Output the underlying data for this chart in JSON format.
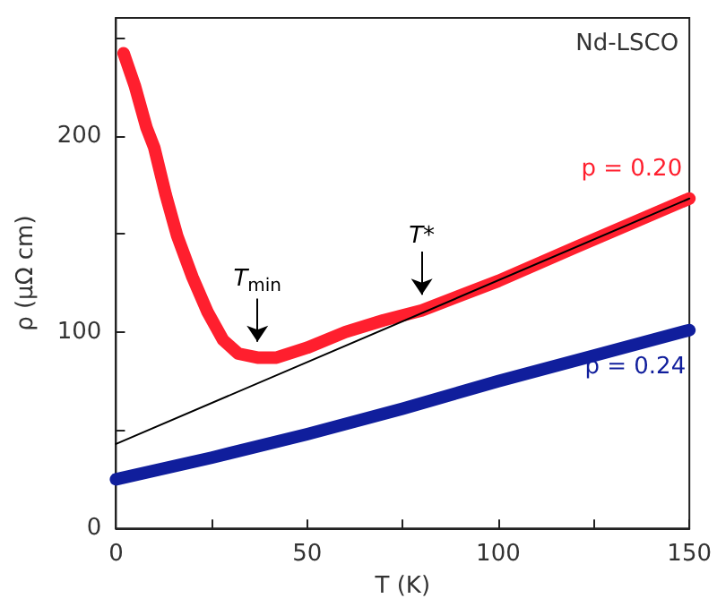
{
  "chart_data": {
    "type": "line",
    "xlabel": "T (K)",
    "ylabel": "ρ (μΩ cm)",
    "xlim": [
      0,
      150
    ],
    "xticks": [
      0,
      {
        "value": 25,
        "label": null
      },
      50,
      {
        "value": 75,
        "label": null
      },
      100,
      {
        "value": 125,
        "label": null
      },
      150
    ],
    "ylim": [
      0,
      260
    ],
    "yticks": [
      0,
      {
        "value": 50,
        "label": null
      },
      100,
      {
        "value": 150,
        "label": null
      },
      200,
      {
        "value": 250,
        "label": null
      }
    ],
    "grid": false,
    "legend": false,
    "marker": "none",
    "series": [
      {
        "name": "p = 0.20",
        "color": "#ff1f2e",
        "x": [
          2,
          5,
          8,
          10,
          13,
          16,
          20,
          24,
          28,
          32,
          37,
          42,
          50,
          60,
          70,
          80,
          100,
          120,
          150
        ],
        "values": [
          242,
          225,
          204,
          194,
          170,
          149,
          128,
          110,
          96,
          89,
          87,
          87,
          92,
          100,
          106,
          111,
          126,
          143,
          168
        ]
      },
      {
        "name": "p = 0.24",
        "color": "#101e9c",
        "x": [
          0,
          25,
          50,
          75,
          100,
          125,
          150
        ],
        "values": [
          25,
          36,
          48,
          61,
          75,
          88,
          101
        ]
      },
      {
        "color": "#000000",
        "x": [
          0,
          150
        ],
        "values": [
          43,
          168
        ]
      }
    ],
    "annotations": [
      {
        "text": "T$_{min}$",
        "x": 37,
        "y": 87
      },
      {
        "text": "T*",
        "x": 80,
        "y": 111
      },
      "Nd-LSCO"
    ]
  }
}
